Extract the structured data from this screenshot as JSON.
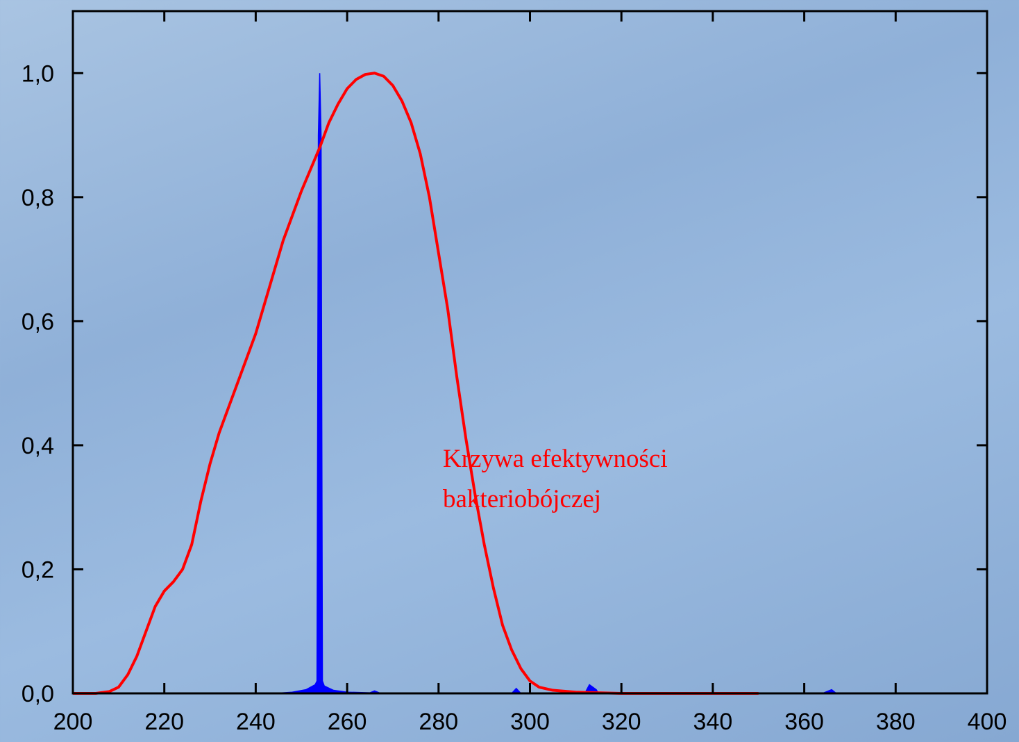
{
  "chart_data": {
    "type": "line",
    "annotation": [
      "Krzywa efektywności",
      "bakteriobójczej"
    ],
    "annotation_color": "#ff0000",
    "xlim": [
      200,
      400
    ],
    "xticks": [
      200,
      220,
      240,
      260,
      280,
      300,
      320,
      340,
      360,
      380,
      400
    ],
    "ylim": [
      0,
      1.1
    ],
    "yticks": [
      {
        "value": 0,
        "label": "0,0"
      },
      {
        "value": 0.2,
        "label": "0,2"
      },
      {
        "value": 0.4,
        "label": "0,4"
      },
      {
        "value": 0.6,
        "label": "0,6"
      },
      {
        "value": 0.8,
        "label": "0,8"
      },
      {
        "value": 1.0,
        "label": "1,0"
      }
    ],
    "series": [
      {
        "color": "#0000ff",
        "fill": true,
        "x": [
          244,
          248,
          251,
          253,
          253.4,
          253.7,
          254.0,
          254.3,
          254.6,
          255,
          257,
          260,
          265,
          266,
          267,
          296,
          297,
          298,
          312,
          313,
          314.5,
          315,
          364,
          366,
          367
        ],
        "values": [
          0,
          0.002,
          0.006,
          0.014,
          0.02,
          0.9,
          1.0,
          0.9,
          0.02,
          0.012,
          0.005,
          0.002,
          0.001,
          0.004,
          0.001,
          0,
          0.008,
          0,
          0,
          0.014,
          0.006,
          0,
          0,
          0.006,
          0
        ]
      },
      {
        "color": "#ff0000",
        "fill": false,
        "x": [
          200,
          205,
          208,
          210,
          212,
          214,
          216,
          218,
          220,
          222,
          224,
          226,
          228,
          230,
          232,
          234,
          236,
          238,
          240,
          242,
          244,
          246,
          248,
          250,
          252,
          254,
          256,
          258,
          260,
          262,
          264,
          266,
          268,
          270,
          272,
          274,
          276,
          278,
          280,
          282,
          284,
          286,
          288,
          290,
          292,
          294,
          296,
          298,
          300,
          302,
          305,
          310,
          320,
          350
        ],
        "values": [
          0,
          0,
          0.003,
          0.01,
          0.03,
          0.06,
          0.1,
          0.14,
          0.165,
          0.18,
          0.2,
          0.24,
          0.31,
          0.37,
          0.42,
          0.46,
          0.5,
          0.54,
          0.58,
          0.63,
          0.68,
          0.73,
          0.77,
          0.81,
          0.845,
          0.88,
          0.92,
          0.95,
          0.975,
          0.99,
          0.998,
          1.0,
          0.995,
          0.98,
          0.955,
          0.92,
          0.87,
          0.8,
          0.71,
          0.62,
          0.51,
          0.41,
          0.32,
          0.24,
          0.17,
          0.11,
          0.07,
          0.04,
          0.02,
          0.01,
          0.005,
          0.002,
          0,
          0
        ]
      }
    ]
  }
}
